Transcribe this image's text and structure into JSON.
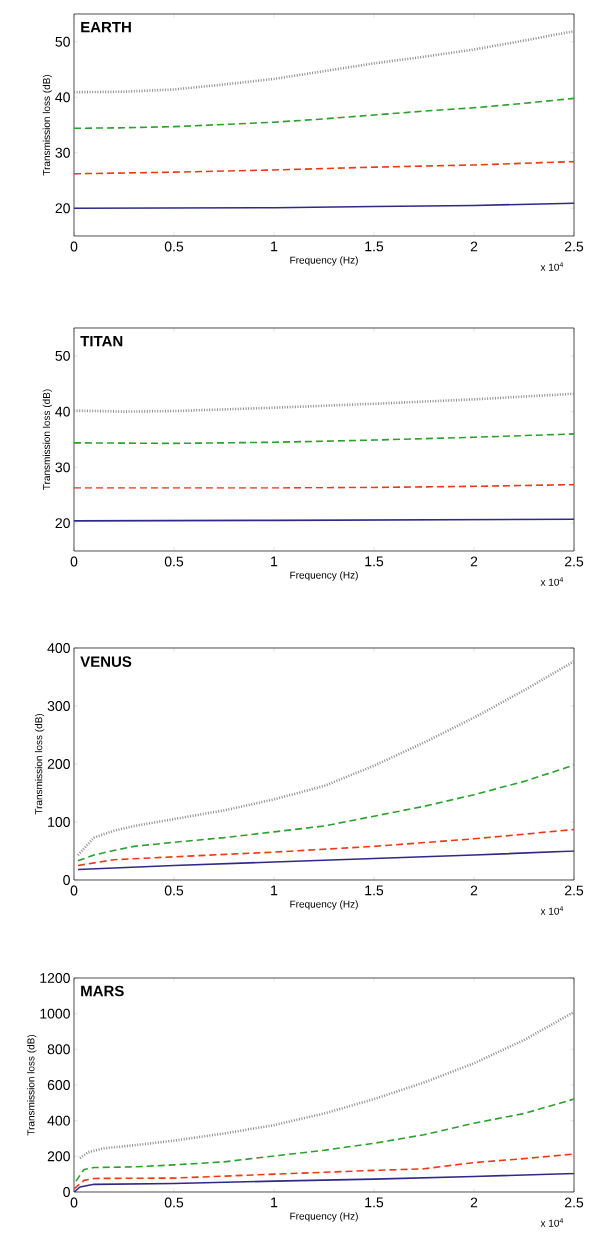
{
  "chart_data": [
    {
      "type": "line",
      "title": "EARTH",
      "xlabel": "Frequency (Hz)",
      "ylabel": "Transmission loss (dB)",
      "annotations": [
        "x 10$^{4}$"
      ],
      "xlim": [
        0,
        2.5
      ],
      "xticks": [
        0,
        0.5,
        1,
        1.5,
        2,
        2.5
      ],
      "ylim": [
        15,
        55
      ],
      "yticks": [
        20,
        30,
        40,
        50
      ],
      "series": [
        {
          "color": "#8c8c8c",
          "line_style": "dotted",
          "x": [
            0,
            0.25,
            0.5,
            0.75,
            1,
            1.25,
            1.5,
            1.75,
            2,
            2.25,
            2.5
          ],
          "values": [
            40.9,
            41.0,
            41.4,
            42.3,
            43.3,
            44.7,
            46.1,
            47.3,
            48.6,
            50.2,
            51.9
          ]
        },
        {
          "color": "#2ca02c",
          "line_style": "dashed",
          "x": [
            0,
            0.25,
            0.5,
            0.75,
            1,
            1.25,
            1.5,
            1.75,
            2,
            2.25,
            2.5
          ],
          "values": [
            34.4,
            34.5,
            34.7,
            35.1,
            35.5,
            36.1,
            36.8,
            37.5,
            38.1,
            38.9,
            39.8
          ]
        },
        {
          "color": "#ee3a14",
          "line_style": "dashed",
          "x": [
            0,
            0.5,
            1,
            1.5,
            2,
            2.5
          ],
          "values": [
            26.2,
            26.5,
            26.9,
            27.4,
            27.8,
            28.4
          ]
        },
        {
          "color": "#2e2a8a",
          "line_style": "solid",
          "x": [
            0,
            1,
            1.5,
            2,
            2.5
          ],
          "values": [
            20.0,
            20.1,
            20.3,
            20.5,
            20.9
          ]
        }
      ]
    },
    {
      "type": "line",
      "title": "TITAN",
      "xlabel": "Frequency (Hz)",
      "ylabel": "Transmission loss (dB)",
      "annotations": [
        "x 10$^{4}$"
      ],
      "xlim": [
        0,
        2.5
      ],
      "xticks": [
        0,
        0.5,
        1,
        1.5,
        2,
        2.5
      ],
      "ylim": [
        15,
        55
      ],
      "yticks": [
        20,
        30,
        40,
        50
      ],
      "series": [
        {
          "color": "#8c8c8c",
          "line_style": "dotted",
          "x": [
            0,
            0.25,
            0.5,
            1,
            1.5,
            2,
            2.5
          ],
          "values": [
            40.2,
            40.0,
            40.1,
            40.7,
            41.4,
            42.2,
            43.2
          ]
        },
        {
          "color": "#2ca02c",
          "line_style": "dashed",
          "x": [
            0,
            0.5,
            1,
            1.5,
            2,
            2.5
          ],
          "values": [
            34.4,
            34.3,
            34.5,
            34.9,
            35.4,
            36.0
          ]
        },
        {
          "color": "#ee3a14",
          "line_style": "dashed",
          "x": [
            0,
            1,
            1.5,
            2,
            2.5
          ],
          "values": [
            26.3,
            26.3,
            26.4,
            26.6,
            26.9
          ]
        },
        {
          "color": "#2e2a8a",
          "line_style": "solid",
          "x": [
            0,
            1,
            2.5
          ],
          "values": [
            20.4,
            20.5,
            20.7
          ]
        }
      ]
    },
    {
      "type": "line",
      "title": "VENUS",
      "xlabel": "Frequency (Hz)",
      "ylabel": "Transmission loss (dB)",
      "annotations": [
        "x 10$^{4}$"
      ],
      "xlim": [
        0,
        2.5
      ],
      "xticks": [
        0,
        0.5,
        1,
        1.5,
        2,
        2.5
      ],
      "ylim": [
        0,
        400
      ],
      "yticks": [
        0,
        100,
        200,
        300,
        400
      ],
      "series": [
        {
          "color": "#8c8c8c",
          "line_style": "dotted",
          "x": [
            0.02,
            0.1,
            0.2,
            0.3,
            0.5,
            0.75,
            1,
            1.25,
            1.5,
            1.75,
            2,
            2.25,
            2.5
          ],
          "values": [
            43,
            73,
            85,
            93,
            105,
            120,
            139,
            162,
            197,
            237,
            280,
            327,
            377
          ]
        },
        {
          "color": "#2ca02c",
          "line_style": "dashed",
          "x": [
            0.02,
            0.1,
            0.2,
            0.3,
            0.5,
            0.75,
            1,
            1.25,
            1.5,
            1.75,
            2,
            2.25,
            2.5
          ],
          "values": [
            33,
            43,
            51,
            58,
            65,
            73,
            83,
            93,
            110,
            127,
            147,
            170,
            198
          ]
        },
        {
          "color": "#ee3a14",
          "line_style": "dashed",
          "x": [
            0.02,
            0.2,
            0.5,
            1,
            1.5,
            2,
            2.5
          ],
          "values": [
            25,
            35,
            40,
            48,
            58,
            71,
            87
          ]
        },
        {
          "color": "#2e2a8a",
          "line_style": "solid",
          "x": [
            0.02,
            0.5,
            1,
            1.5,
            2,
            2.5
          ],
          "values": [
            18,
            25,
            31,
            37,
            43,
            50
          ]
        }
      ]
    },
    {
      "type": "line",
      "title": "MARS",
      "xlabel": "Frequency (Hz)",
      "ylabel": "Transmission loss (dB)",
      "annotations": [
        "x 10$^{4}$"
      ],
      "xlim": [
        0,
        2.5
      ],
      "xticks": [
        0,
        0.5,
        1,
        1.5,
        2,
        2.5
      ],
      "ylim": [
        0,
        1200
      ],
      "yticks": [
        0,
        200,
        400,
        600,
        800,
        1000,
        1200
      ],
      "series": [
        {
          "color": "#8c8c8c",
          "line_style": "dotted",
          "x": [
            0.03,
            0.07,
            0.15,
            0.3,
            0.5,
            0.75,
            1,
            1.25,
            1.5,
            1.75,
            2,
            2.25,
            2.5
          ],
          "values": [
            190,
            223,
            245,
            262,
            288,
            328,
            375,
            440,
            521,
            614,
            722,
            852,
            1009
          ]
        },
        {
          "color": "#2ca02c",
          "line_style": "dashed",
          "x": [
            0.01,
            0.05,
            0.1,
            0.3,
            0.5,
            0.75,
            1,
            1.25,
            1.5,
            1.75,
            2,
            2.25,
            2.5
          ],
          "values": [
            61,
            126,
            137,
            141,
            152,
            169,
            202,
            234,
            273,
            321,
            386,
            440,
            521
          ]
        },
        {
          "color": "#ee3a14",
          "line_style": "dashed",
          "x": [
            0,
            0.05,
            0.1,
            0.5,
            1,
            1.5,
            1.75,
            2,
            2.25,
            2.5
          ],
          "values": [
            17,
            65,
            76,
            78,
            100,
            121,
            130,
            165,
            187,
            213
          ]
        },
        {
          "color": "#2e2a8a",
          "line_style": "solid",
          "x": [
            0,
            0.03,
            0.1,
            0.5,
            1,
            1.5,
            2,
            2.5
          ],
          "values": [
            0,
            28,
            43,
            48,
            61,
            72,
            87,
            104
          ]
        }
      ]
    }
  ]
}
